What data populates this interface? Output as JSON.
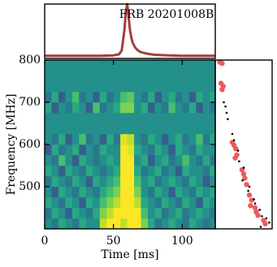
{
  "chart_data": [
    {
      "type": "line",
      "title": "FRB 20201008B",
      "color": "#a83c3c",
      "xlim": [
        0,
        124
      ],
      "ylim": [
        -0.05,
        1.0
      ],
      "x": [
        0,
        10,
        20,
        30,
        40,
        50,
        54,
        56,
        58,
        59,
        60,
        61,
        62,
        63,
        64,
        66,
        68,
        70,
        75,
        80,
        90,
        100,
        110,
        124
      ],
      "values": [
        0,
        0,
        0,
        0,
        0,
        0.01,
        0.03,
        0.1,
        0.5,
        0.85,
        1.0,
        0.75,
        0.5,
        0.35,
        0.25,
        0.15,
        0.1,
        0.07,
        0.04,
        0.02,
        0.01,
        0,
        0,
        0
      ]
    },
    {
      "type": "heatmap",
      "xlabel": "Time [ms]",
      "ylabel": "Frequency [MHz]",
      "colormap": "viridis",
      "zlim": [
        0,
        1
      ],
      "xlim": [
        0,
        124
      ],
      "ylim": [
        400,
        800
      ],
      "xticks": [
        0,
        50,
        100
      ],
      "yticks": [
        500,
        600,
        700,
        800
      ],
      "x_bins": [
        0,
        5,
        10,
        15,
        20,
        25,
        30,
        35,
        40,
        45,
        50,
        55,
        60,
        65,
        70,
        75,
        80,
        85,
        90,
        95,
        100,
        105,
        110,
        115,
        120,
        124
      ],
      "y_bins": [
        400,
        425,
        450,
        475,
        500,
        525,
        550,
        575,
        600,
        625,
        650,
        675,
        700,
        725,
        750,
        775,
        800
      ],
      "z": [
        [
          0.5,
          0.4,
          0.6,
          0.5,
          0.4,
          0.6,
          0.5,
          0.5,
          0.9,
          1,
          1,
          0.9,
          1,
          1,
          0.8,
          0.6,
          0.4,
          0.5,
          0.6,
          0.5,
          0.4,
          0.6,
          0.5,
          0.4,
          0.5
        ],
        [
          0.4,
          0.6,
          0.5,
          0.3,
          0.6,
          0.5,
          0.4,
          0.6,
          0.8,
          0.9,
          1,
          1,
          1,
          1,
          0.7,
          0.5,
          0.6,
          0.4,
          0.5,
          0.6,
          0.4,
          0.5,
          0.6,
          0.5,
          0.4
        ],
        [
          0.6,
          0.5,
          0.4,
          0.6,
          0.5,
          0.3,
          0.6,
          0.5,
          0.7,
          0.8,
          0.9,
          1,
          1,
          0.9,
          0.6,
          0.5,
          0.4,
          0.6,
          0.5,
          0.4,
          0.6,
          0.5,
          0.3,
          0.6,
          0.5
        ],
        [
          0.5,
          0.3,
          0.6,
          0.5,
          0.4,
          0.6,
          0.5,
          0.4,
          0.6,
          0.7,
          0.8,
          1,
          1,
          0.8,
          0.5,
          0.4,
          0.6,
          0.5,
          0.3,
          0.6,
          0.5,
          0.4,
          0.6,
          0.5,
          0.6
        ],
        [
          0.4,
          0.6,
          0.5,
          0.4,
          0.6,
          0.5,
          0.3,
          0.6,
          0.5,
          0.6,
          0.7,
          1,
          1,
          0.7,
          0.5,
          0.6,
          0.4,
          0.5,
          0.6,
          0.5,
          0.4,
          0.6,
          0.5,
          0.3,
          0.5
        ],
        [
          0.6,
          0.5,
          0.3,
          0.6,
          0.5,
          0.4,
          0.6,
          0.5,
          0.4,
          0.5,
          0.6,
          1,
          1,
          0.6,
          0.4,
          0.5,
          0.6,
          0.4,
          0.5,
          0.3,
          0.6,
          0.5,
          0.5,
          0.4,
          0.6
        ],
        [
          0.5,
          0.4,
          0.7,
          0.5,
          0.3,
          0.6,
          0.5,
          0.4,
          0.5,
          0.6,
          0.5,
          1,
          1,
          0.5,
          0.6,
          0.3,
          0.5,
          0.6,
          0.4,
          0.5,
          0.7,
          0.5,
          0.4,
          0.6,
          0.4
        ],
        [
          0.3,
          0.6,
          0.4,
          0.5,
          0.6,
          0.3,
          0.5,
          0.4,
          0.6,
          0.5,
          0.5,
          1,
          0.95,
          0.6,
          0.5,
          0.4,
          0.6,
          0.5,
          0.3,
          0.6,
          0.5,
          0.4,
          0.6,
          0.5,
          0.5
        ],
        [
          0.5,
          0.4,
          0.6,
          0.3,
          0.5,
          0.7,
          0.4,
          0.5,
          0.3,
          0.6,
          0.4,
          0.95,
          0.9,
          0.5,
          0.4,
          0.6,
          0.5,
          0.3,
          0.5,
          0.6,
          0.4,
          0.5,
          0.7,
          0.4,
          0.6
        ],
        [
          0.5,
          0.5,
          0.5,
          0.5,
          0.5,
          0.5,
          0.5,
          0.5,
          0.5,
          0.5,
          0.5,
          0.5,
          0.5,
          0.5,
          0.5,
          0.5,
          0.5,
          0.5,
          0.5,
          0.5,
          0.5,
          0.5,
          0.5,
          0.5,
          0.5
        ],
        [
          0.5,
          0.5,
          0.5,
          0.5,
          0.5,
          0.5,
          0.5,
          0.5,
          0.5,
          0.5,
          0.5,
          0.5,
          0.5,
          0.5,
          0.5,
          0.5,
          0.5,
          0.5,
          0.5,
          0.5,
          0.5,
          0.5,
          0.5,
          0.5,
          0.5
        ],
        [
          0.6,
          0.3,
          0.5,
          0.4,
          0.6,
          0.5,
          0.3,
          0.7,
          0.4,
          0.5,
          0.6,
          0.8,
          0.8,
          0.5,
          0.6,
          0.3,
          0.5,
          0.4,
          0.7,
          0.5,
          0.4,
          0.6,
          0.3,
          0.5,
          0.4
        ],
        [
          0.4,
          0.6,
          0.3,
          0.5,
          0.7,
          0.4,
          0.5,
          0.3,
          0.6,
          0.4,
          0.5,
          0.7,
          0.75,
          0.5,
          0.4,
          0.6,
          0.3,
          0.5,
          0.6,
          0.4,
          0.5,
          0.3,
          0.6,
          0.5,
          0.6
        ],
        [
          0.5,
          0.5,
          0.5,
          0.5,
          0.5,
          0.5,
          0.5,
          0.5,
          0.5,
          0.5,
          0.5,
          0.5,
          0.5,
          0.5,
          0.5,
          0.5,
          0.5,
          0.5,
          0.5,
          0.5,
          0.5,
          0.5,
          0.5,
          0.5,
          0.5
        ],
        [
          0.5,
          0.5,
          0.5,
          0.5,
          0.5,
          0.5,
          0.5,
          0.5,
          0.5,
          0.5,
          0.5,
          0.5,
          0.5,
          0.5,
          0.5,
          0.5,
          0.5,
          0.5,
          0.5,
          0.5,
          0.5,
          0.5,
          0.5,
          0.5,
          0.5
        ],
        [
          0.5,
          0.5,
          0.5,
          0.5,
          0.5,
          0.5,
          0.5,
          0.5,
          0.5,
          0.5,
          0.5,
          0.5,
          0.5,
          0.5,
          0.5,
          0.5,
          0.5,
          0.5,
          0.5,
          0.5,
          0.5,
          0.5,
          0.5,
          0.5,
          0.5
        ]
      ]
    },
    {
      "type": "scatter",
      "xlim": [
        0,
        1
      ],
      "ylim": [
        400,
        800
      ],
      "series": [
        {
          "color": "#ee5a5c",
          "x": [
            0.08,
            0.12,
            0.1,
            0.14,
            0.12,
            0.3,
            0.33,
            0.36,
            0.38,
            0.35,
            0.47,
            0.5,
            0.52,
            0.55,
            0.6,
            0.64,
            0.62,
            0.7,
            0.72,
            0.75,
            0.85,
            0.88
          ],
          "values": [
            795,
            792,
            745,
            738,
            730,
            605,
            598,
            590,
            575,
            568,
            540,
            530,
            520,
            505,
            480,
            468,
            455,
            450,
            440,
            432,
            420,
            412
          ]
        },
        {
          "color": "#000000",
          "x": [
            0.15,
            0.18,
            0.2,
            0.22,
            0.3,
            0.33,
            0.4,
            0.42,
            0.5,
            0.48,
            0.6,
            0.58,
            0.68,
            0.7,
            0.78,
            0.82,
            0.9,
            0.95,
            0.8
          ],
          "values": [
            700,
            690,
            675,
            660,
            625,
            610,
            585,
            560,
            545,
            515,
            500,
            490,
            470,
            460,
            445,
            430,
            425,
            415,
            405
          ]
        }
      ]
    }
  ]
}
